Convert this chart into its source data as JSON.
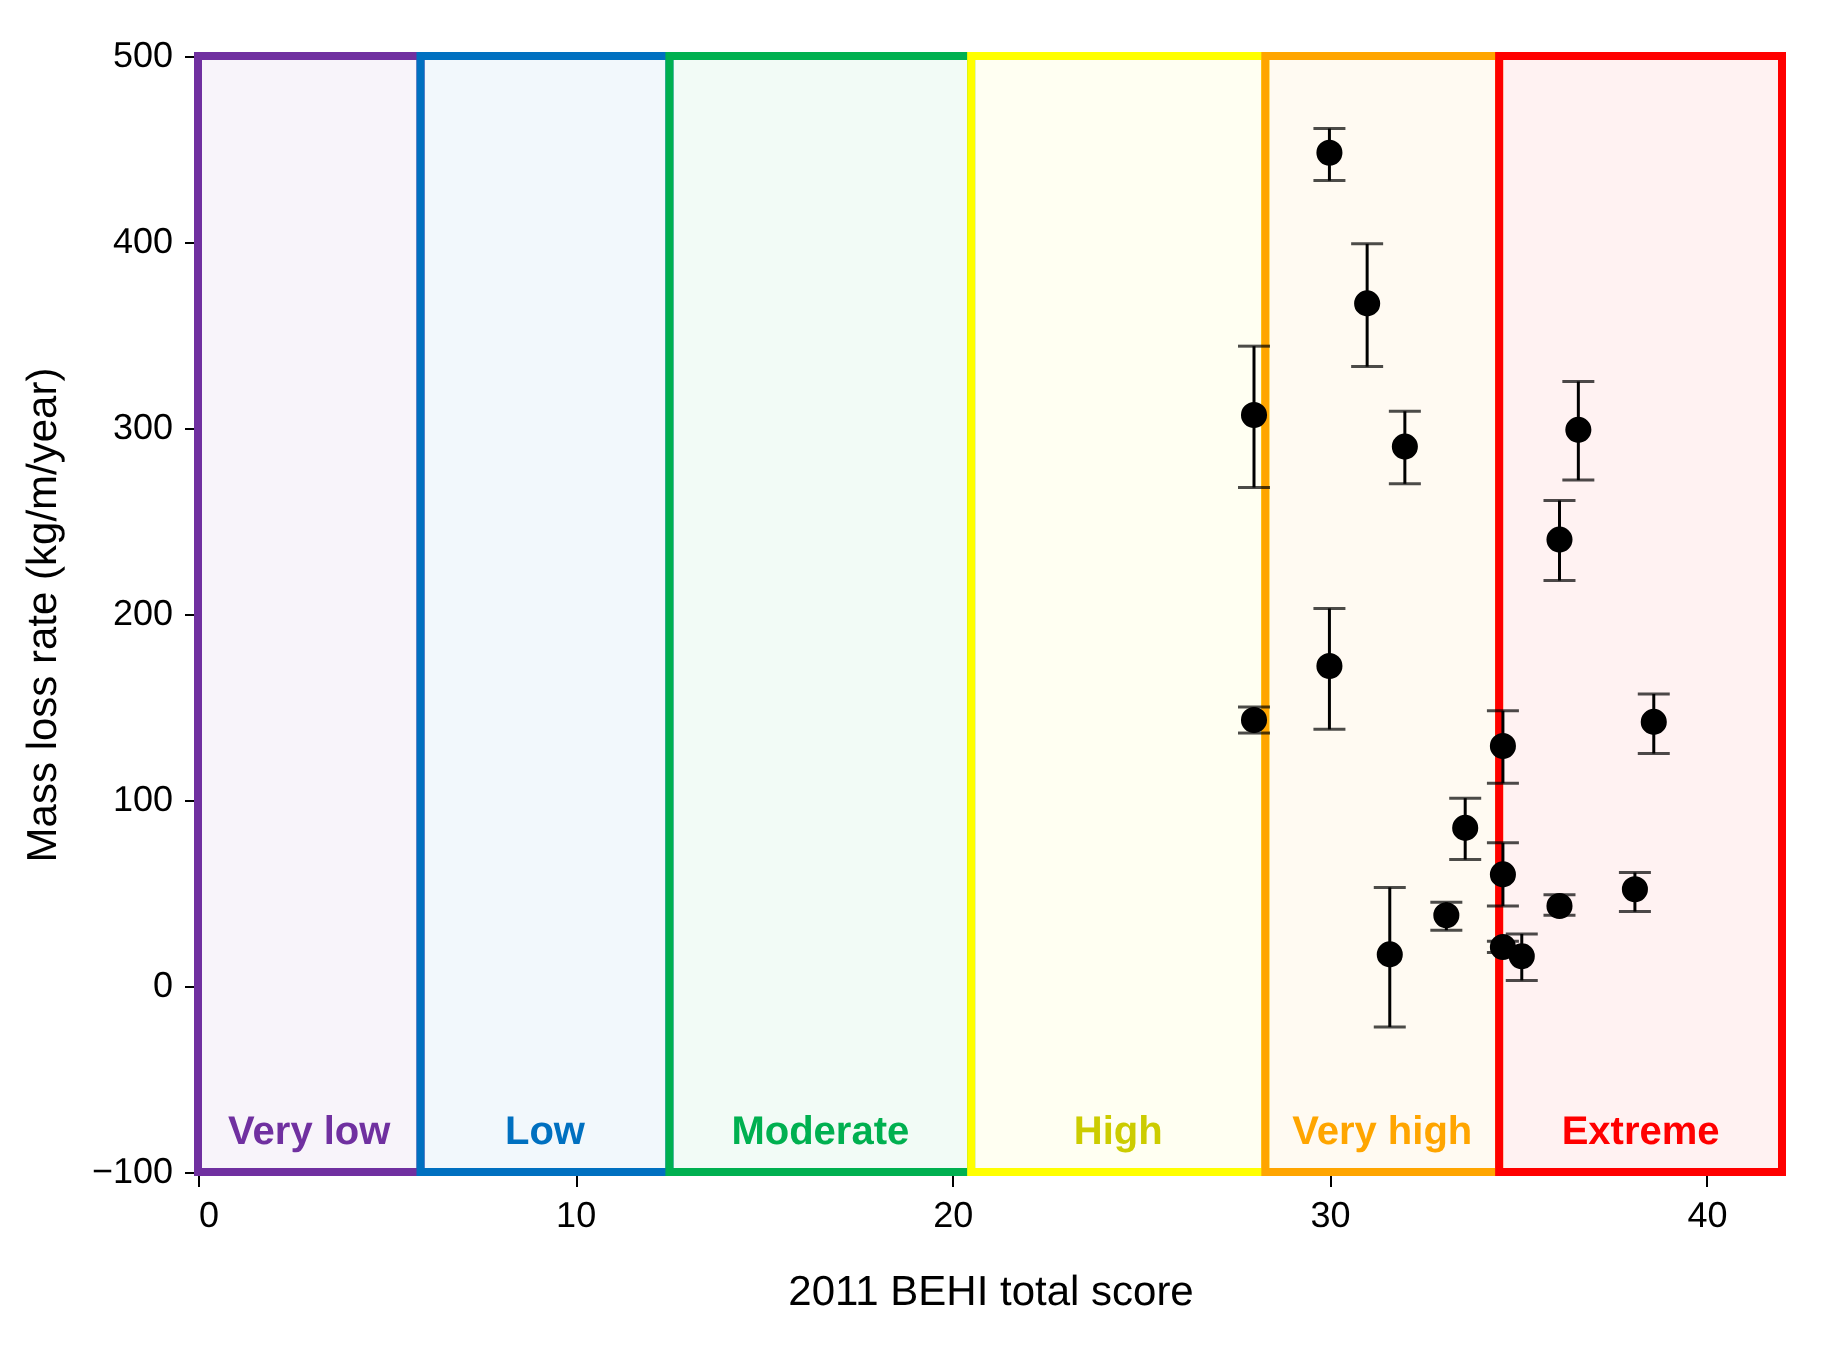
{
  "chart_data": {
    "type": "scatter",
    "xlabel": "2011 BEHI total score",
    "ylabel": "Mass loss rate (kg/m/year)",
    "x": [
      28.0,
      28.0,
      30.0,
      30.0,
      31.0,
      31.6,
      32.0,
      33.1,
      33.6,
      34.6,
      34.6,
      34.6,
      35.1,
      36.1,
      36.1,
      36.6,
      38.1,
      38.6
    ],
    "series": [
      {
        "color": "#000000",
        "values": [
          307,
          143,
          448,
          172,
          367,
          17,
          290,
          38,
          85,
          129,
          60,
          21,
          16,
          43,
          240,
          299,
          52,
          142
        ],
        "errors": [
          [
            268,
            344
          ],
          [
            136,
            150
          ],
          [
            433,
            461
          ],
          [
            138,
            203
          ],
          [
            333,
            399
          ],
          [
            -22,
            53
          ],
          [
            270,
            309
          ],
          [
            30,
            45
          ],
          [
            68,
            101
          ],
          [
            109,
            148
          ],
          [
            43,
            77
          ],
          [
            18,
            24
          ],
          [
            3,
            28
          ],
          [
            38,
            49
          ],
          [
            218,
            261
          ],
          [
            272,
            325
          ],
          [
            40,
            61
          ],
          [
            125,
            157
          ]
        ]
      }
    ],
    "marker": "circle",
    "xlim": [
      0,
      42
    ],
    "xticks": [
      0,
      10,
      20,
      30,
      40
    ],
    "ylim": [
      -100,
      500
    ],
    "yticks": [
      -100,
      0,
      100,
      200,
      300,
      400,
      500
    ],
    "grid": false,
    "bands": [
      {
        "axis": "x",
        "from": 0,
        "to": 5.9,
        "label": "Very low",
        "color": "#7030a0"
      },
      {
        "axis": "x",
        "from": 5.9,
        "to": 12.5,
        "label": "Low",
        "color": "#0070c0"
      },
      {
        "axis": "x",
        "from": 12.5,
        "to": 20.5,
        "label": "Moderate",
        "color": "#00b050"
      },
      {
        "axis": "x",
        "from": 20.5,
        "to": 28.3,
        "label": "High",
        "color": "#ffff00"
      },
      {
        "axis": "x",
        "from": 28.3,
        "to": 34.5,
        "label": "Very high",
        "color": "#ffa500"
      },
      {
        "axis": "x",
        "from": 34.5,
        "to": 42,
        "label": "Extreme",
        "color": "#ff0000"
      }
    ]
  }
}
